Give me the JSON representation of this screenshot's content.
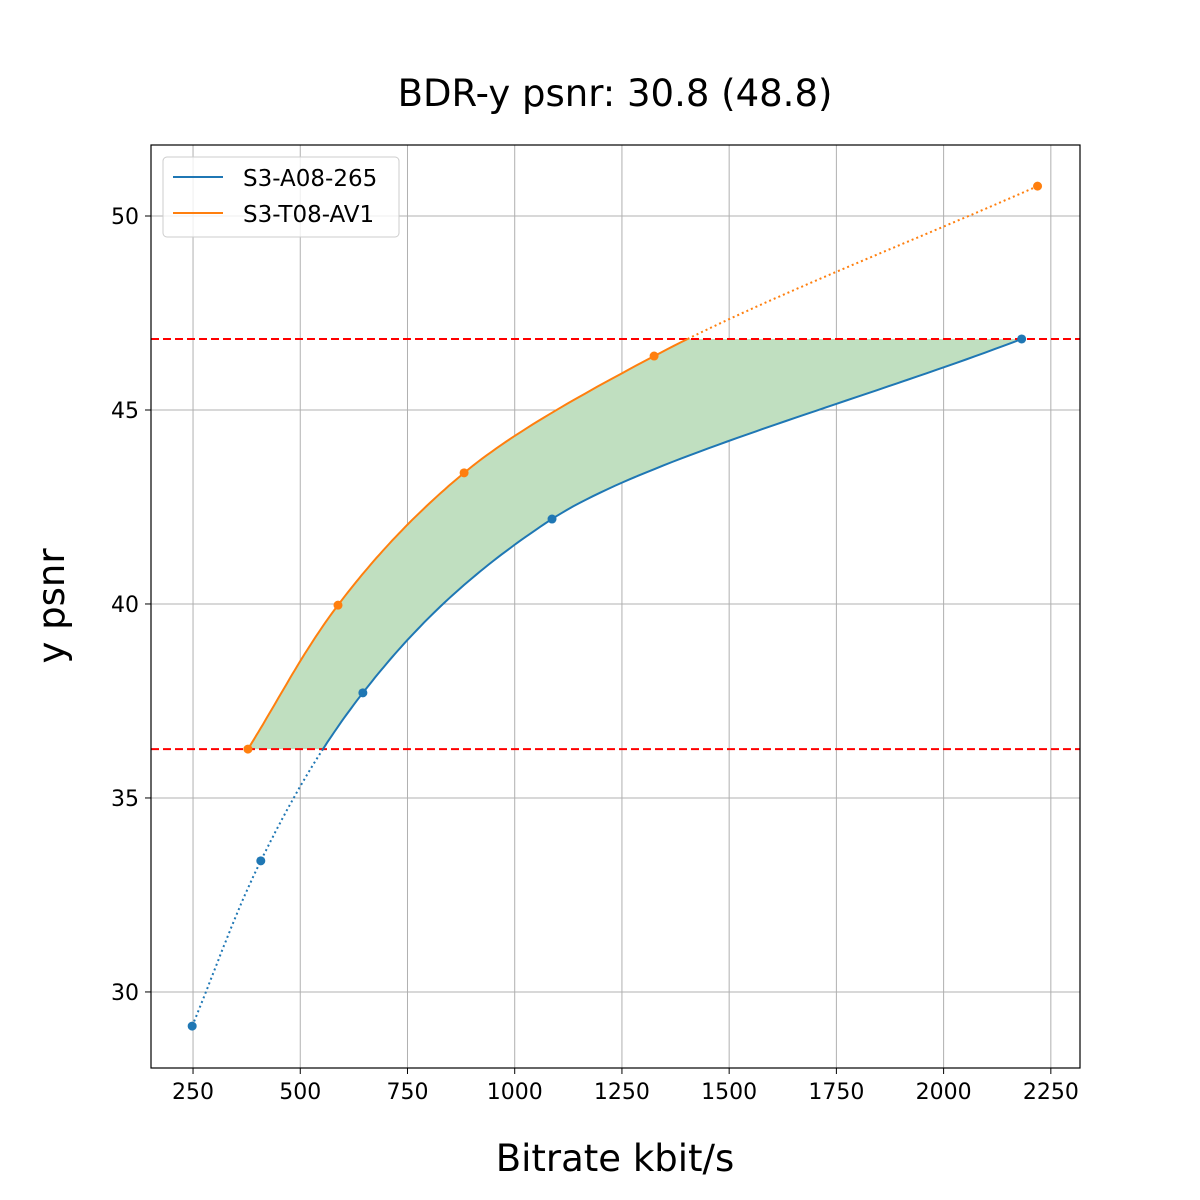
{
  "chart_data": {
    "type": "line",
    "title": "BDR-y psnr: 30.8 (48.8)",
    "xlabel": "Bitrate kbit/s",
    "ylabel": "y psnr",
    "xlim": [
      152,
      2318
    ],
    "ylim": [
      28.04,
      51.83
    ],
    "xticks": [
      250,
      500,
      750,
      1000,
      1250,
      1500,
      1750,
      2000,
      2250
    ],
    "yticks": [
      30,
      35,
      40,
      45,
      50
    ],
    "grid": true,
    "legend_position": "top-left",
    "series": [
      {
        "name": "S3-A08-265",
        "color": "#1f77b4",
        "x": [
          248,
          408,
          646,
          1087,
          2182
        ],
        "y": [
          29.12,
          33.38,
          37.71,
          42.19,
          46.83
        ]
      },
      {
        "name": "S3-T08-AV1",
        "color": "#ff7f0e",
        "x": [
          378,
          588,
          882,
          1325,
          2219
        ],
        "y": [
          36.26,
          39.97,
          43.38,
          46.39,
          50.77
        ]
      }
    ],
    "reference_lines": {
      "y": [
        36.26,
        46.83
      ],
      "color": "#ff0000",
      "style": "dashed"
    },
    "fill_between": {
      "color": "#c0dfc0",
      "y_range": [
        36.26,
        46.83
      ]
    }
  }
}
